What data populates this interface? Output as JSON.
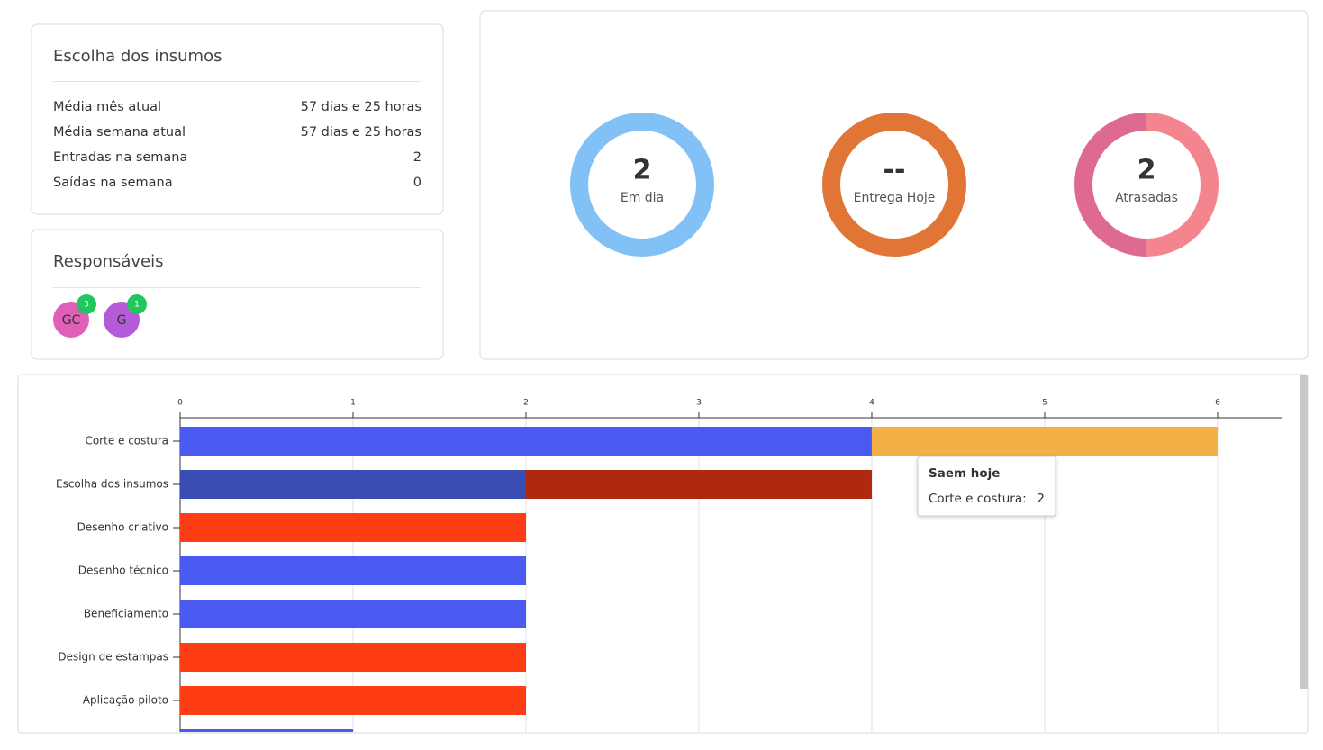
{
  "summary": {
    "title": "Escolha dos insumos",
    "rows": [
      [
        "Média mês atual",
        "57 dias e 25 horas"
      ],
      [
        "Média semana atual",
        "57 dias e 25 horas"
      ],
      [
        "Entradas na semana",
        2
      ],
      [
        "Saídas na semana",
        0
      ]
    ]
  },
  "responsaveis": {
    "title": "Responsáveis",
    "people": [
      {
        "initials": "GC",
        "count": 3,
        "color": "#e060b8"
      },
      {
        "initials": "G",
        "count": 1,
        "color": "#b55ad8"
      }
    ]
  },
  "donuts": [
    {
      "value": 2,
      "label": "Em dia",
      "colors": [
        "#82c1f5",
        "#82c1f5"
      ]
    },
    {
      "value": "--",
      "label": "Entrega Hoje",
      "colors": [
        "#e07535",
        "#e07535"
      ]
    },
    {
      "value": 2,
      "label": "Atrasadas",
      "colors": [
        "#f4858f",
        "#de6a92"
      ]
    }
  ],
  "chart_data": {
    "type": "bar",
    "orientation": "horizontal",
    "stacked": true,
    "categories": [
      "Corte e costura",
      "Escolha dos insumos",
      "Desenho criativo",
      "Desenho técnico",
      "Beneficiamento",
      "Design de estampas",
      "Aplicação piloto",
      null
    ],
    "series": [
      {
        "colors": [
          "#4a5af0",
          "#3a4db5",
          "#ff3d14",
          "#4a5af0",
          "#4a5af0",
          "#ff3d14",
          "#ff3d14",
          "#4a5af0"
        ],
        "values": [
          4,
          2,
          2,
          2,
          2,
          2,
          2,
          1
        ]
      },
      {
        "name": "Saem hoje",
        "color": "#f2b046",
        "values": [
          2,
          null,
          null,
          null,
          null,
          null,
          null,
          null
        ]
      },
      {
        "color": "#b0280e",
        "values": [
          null,
          2,
          null,
          null,
          null,
          null,
          null,
          null
        ]
      }
    ],
    "xlim": [
      0,
      6.37
    ],
    "xticks": [
      0,
      1,
      2,
      3,
      4,
      5,
      6
    ],
    "grid": true,
    "tooltip": {
      "title": "Saem hoje",
      "label": "Corte e costura:",
      "value": 2
    }
  }
}
